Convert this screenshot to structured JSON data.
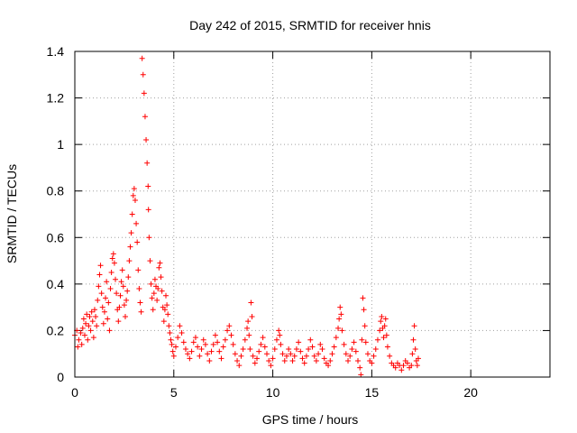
{
  "chart_data": {
    "type": "scatter",
    "title": "Day 242 of 2015, SRMTID for receiver hnis",
    "xlabel": "GPS time / hours",
    "ylabel": "SRMTID / TECUs",
    "xlim": [
      0,
      24
    ],
    "ylim": [
      0,
      1.4
    ],
    "xticks": [
      0,
      5,
      10,
      15,
      20
    ],
    "yticks": [
      0,
      0.2,
      0.4,
      0.6,
      0.8,
      1,
      1.2,
      1.4
    ],
    "xtick_labels": [
      "0",
      "5",
      "10",
      "15",
      "20"
    ],
    "ytick_labels": [
      "0",
      "0.2",
      "0.4",
      "0.6",
      "0.8",
      "1",
      "1.2",
      "1.4"
    ],
    "grid": true,
    "marker": "+",
    "series": [
      {
        "name": "SRMTID",
        "color": "#ff0000",
        "points": [
          [
            0.0,
            0.18
          ],
          [
            0.1,
            0.2
          ],
          [
            0.15,
            0.13
          ],
          [
            0.2,
            0.16
          ],
          [
            0.3,
            0.19
          ],
          [
            0.35,
            0.14
          ],
          [
            0.4,
            0.21
          ],
          [
            0.45,
            0.25
          ],
          [
            0.5,
            0.18
          ],
          [
            0.55,
            0.23
          ],
          [
            0.6,
            0.27
          ],
          [
            0.65,
            0.16
          ],
          [
            0.7,
            0.22
          ],
          [
            0.75,
            0.26
          ],
          [
            0.8,
            0.2
          ],
          [
            0.85,
            0.28
          ],
          [
            0.9,
            0.24
          ],
          [
            0.95,
            0.17
          ],
          [
            1.0,
            0.29
          ],
          [
            1.05,
            0.26
          ],
          [
            1.1,
            0.22
          ],
          [
            1.15,
            0.33
          ],
          [
            1.2,
            0.39
          ],
          [
            1.25,
            0.44
          ],
          [
            1.3,
            0.48
          ],
          [
            1.35,
            0.36
          ],
          [
            1.4,
            0.3
          ],
          [
            1.45,
            0.23
          ],
          [
            1.5,
            0.28
          ],
          [
            1.55,
            0.34
          ],
          [
            1.6,
            0.41
          ],
          [
            1.65,
            0.25
          ],
          [
            1.7,
            0.32
          ],
          [
            1.75,
            0.2
          ],
          [
            1.8,
            0.38
          ],
          [
            1.85,
            0.45
          ],
          [
            1.9,
            0.51
          ],
          [
            1.95,
            0.53
          ],
          [
            2.0,
            0.49
          ],
          [
            2.05,
            0.42
          ],
          [
            2.1,
            0.36
          ],
          [
            2.15,
            0.29
          ],
          [
            2.2,
            0.24
          ],
          [
            2.25,
            0.3
          ],
          [
            2.3,
            0.35
          ],
          [
            2.35,
            0.41
          ],
          [
            2.4,
            0.46
          ],
          [
            2.45,
            0.39
          ],
          [
            2.5,
            0.31
          ],
          [
            2.55,
            0.26
          ],
          [
            2.6,
            0.33
          ],
          [
            2.65,
            0.37
          ],
          [
            2.7,
            0.43
          ],
          [
            2.75,
            0.5
          ],
          [
            2.8,
            0.56
          ],
          [
            2.85,
            0.62
          ],
          [
            2.9,
            0.7
          ],
          [
            2.95,
            0.78
          ],
          [
            3.0,
            0.81
          ],
          [
            3.05,
            0.76
          ],
          [
            3.1,
            0.66
          ],
          [
            3.15,
            0.58
          ],
          [
            3.2,
            0.46
          ],
          [
            3.25,
            0.38
          ],
          [
            3.3,
            0.32
          ],
          [
            3.35,
            0.28
          ],
          [
            3.4,
            1.37
          ],
          [
            3.45,
            1.3
          ],
          [
            3.5,
            1.22
          ],
          [
            3.55,
            1.12
          ],
          [
            3.6,
            1.02
          ],
          [
            3.65,
            0.92
          ],
          [
            3.7,
            0.82
          ],
          [
            3.72,
            0.72
          ],
          [
            3.75,
            0.6
          ],
          [
            3.8,
            0.5
          ],
          [
            3.85,
            0.4
          ],
          [
            3.9,
            0.34
          ],
          [
            3.95,
            0.29
          ],
          [
            4.0,
            0.36
          ],
          [
            4.05,
            0.42
          ],
          [
            4.1,
            0.39
          ],
          [
            4.15,
            0.33
          ],
          [
            4.2,
            0.38
          ],
          [
            4.25,
            0.47
          ],
          [
            4.3,
            0.49
          ],
          [
            4.35,
            0.43
          ],
          [
            4.4,
            0.37
          ],
          [
            4.45,
            0.3
          ],
          [
            4.5,
            0.24
          ],
          [
            4.55,
            0.29
          ],
          [
            4.6,
            0.35
          ],
          [
            4.65,
            0.31
          ],
          [
            4.7,
            0.27
          ],
          [
            4.75,
            0.22
          ],
          [
            4.8,
            0.19
          ],
          [
            4.85,
            0.16
          ],
          [
            4.9,
            0.14
          ],
          [
            4.95,
            0.11
          ],
          [
            5.0,
            0.09
          ],
          [
            5.1,
            0.13
          ],
          [
            5.2,
            0.17
          ],
          [
            5.3,
            0.22
          ],
          [
            5.4,
            0.19
          ],
          [
            5.5,
            0.15
          ],
          [
            5.6,
            0.12
          ],
          [
            5.7,
            0.1
          ],
          [
            5.8,
            0.08
          ],
          [
            5.9,
            0.11
          ],
          [
            6.0,
            0.15
          ],
          [
            6.1,
            0.17
          ],
          [
            6.2,
            0.13
          ],
          [
            6.3,
            0.09
          ],
          [
            6.4,
            0.12
          ],
          [
            6.5,
            0.16
          ],
          [
            6.6,
            0.14
          ],
          [
            6.7,
            0.1
          ],
          [
            6.8,
            0.07
          ],
          [
            6.9,
            0.11
          ],
          [
            7.0,
            0.14
          ],
          [
            7.1,
            0.18
          ],
          [
            7.2,
            0.15
          ],
          [
            7.3,
            0.11
          ],
          [
            7.4,
            0.08
          ],
          [
            7.5,
            0.13
          ],
          [
            7.6,
            0.16
          ],
          [
            7.7,
            0.2
          ],
          [
            7.8,
            0.22
          ],
          [
            7.9,
            0.18
          ],
          [
            8.0,
            0.14
          ],
          [
            8.1,
            0.1
          ],
          [
            8.2,
            0.07
          ],
          [
            8.3,
            0.05
          ],
          [
            8.4,
            0.09
          ],
          [
            8.5,
            0.12
          ],
          [
            8.6,
            0.16
          ],
          [
            8.7,
            0.21
          ],
          [
            8.75,
            0.24
          ],
          [
            8.8,
            0.18
          ],
          [
            8.85,
            0.12
          ],
          [
            8.9,
            0.32
          ],
          [
            8.95,
            0.26
          ],
          [
            9.0,
            0.09
          ],
          [
            9.1,
            0.06
          ],
          [
            9.2,
            0.08
          ],
          [
            9.3,
            0.11
          ],
          [
            9.4,
            0.14
          ],
          [
            9.5,
            0.17
          ],
          [
            9.6,
            0.13
          ],
          [
            9.7,
            0.1
          ],
          [
            9.8,
            0.07
          ],
          [
            9.9,
            0.05
          ],
          [
            10.0,
            0.08
          ],
          [
            10.1,
            0.12
          ],
          [
            10.2,
            0.16
          ],
          [
            10.3,
            0.2
          ],
          [
            10.35,
            0.18
          ],
          [
            10.4,
            0.14
          ],
          [
            10.5,
            0.1
          ],
          [
            10.6,
            0.07
          ],
          [
            10.7,
            0.09
          ],
          [
            10.8,
            0.12
          ],
          [
            10.9,
            0.1
          ],
          [
            11.0,
            0.07
          ],
          [
            11.1,
            0.09
          ],
          [
            11.2,
            0.12
          ],
          [
            11.3,
            0.15
          ],
          [
            11.4,
            0.11
          ],
          [
            11.5,
            0.08
          ],
          [
            11.6,
            0.06
          ],
          [
            11.7,
            0.09
          ],
          [
            11.8,
            0.12
          ],
          [
            11.9,
            0.16
          ],
          [
            12.0,
            0.13
          ],
          [
            12.1,
            0.09
          ],
          [
            12.2,
            0.07
          ],
          [
            12.3,
            0.1
          ],
          [
            12.4,
            0.14
          ],
          [
            12.5,
            0.12
          ],
          [
            12.6,
            0.08
          ],
          [
            12.7,
            0.06
          ],
          [
            12.8,
            0.05
          ],
          [
            12.9,
            0.07
          ],
          [
            13.0,
            0.1
          ],
          [
            13.1,
            0.13
          ],
          [
            13.2,
            0.17
          ],
          [
            13.3,
            0.21
          ],
          [
            13.35,
            0.25
          ],
          [
            13.4,
            0.3
          ],
          [
            13.45,
            0.27
          ],
          [
            13.5,
            0.2
          ],
          [
            13.6,
            0.14
          ],
          [
            13.7,
            0.1
          ],
          [
            13.8,
            0.07
          ],
          [
            13.9,
            0.09
          ],
          [
            14.0,
            0.12
          ],
          [
            14.1,
            0.15
          ],
          [
            14.2,
            0.11
          ],
          [
            14.3,
            0.07
          ],
          [
            14.4,
            0.04
          ],
          [
            14.45,
            0.01
          ],
          [
            14.5,
            0.16
          ],
          [
            14.55,
            0.34
          ],
          [
            14.6,
            0.29
          ],
          [
            14.65,
            0.22
          ],
          [
            14.7,
            0.15
          ],
          [
            14.8,
            0.1
          ],
          [
            14.9,
            0.07
          ],
          [
            15.0,
            0.06
          ],
          [
            15.1,
            0.09
          ],
          [
            15.2,
            0.12
          ],
          [
            15.3,
            0.16
          ],
          [
            15.4,
            0.2
          ],
          [
            15.45,
            0.24
          ],
          [
            15.5,
            0.26
          ],
          [
            15.55,
            0.21
          ],
          [
            15.6,
            0.17
          ],
          [
            15.65,
            0.22
          ],
          [
            15.7,
            0.25
          ],
          [
            15.75,
            0.18
          ],
          [
            15.8,
            0.13
          ],
          [
            15.9,
            0.09
          ],
          [
            16.0,
            0.06
          ],
          [
            16.1,
            0.05
          ],
          [
            16.2,
            0.04
          ],
          [
            16.3,
            0.06
          ],
          [
            16.4,
            0.05
          ],
          [
            16.5,
            0.03
          ],
          [
            16.6,
            0.05
          ],
          [
            16.7,
            0.07
          ],
          [
            16.8,
            0.06
          ],
          [
            16.9,
            0.04
          ],
          [
            17.0,
            0.05
          ],
          [
            17.05,
            0.1
          ],
          [
            17.1,
            0.16
          ],
          [
            17.15,
            0.22
          ],
          [
            17.2,
            0.12
          ],
          [
            17.25,
            0.07
          ],
          [
            17.3,
            0.05
          ],
          [
            17.35,
            0.08
          ]
        ]
      }
    ]
  }
}
